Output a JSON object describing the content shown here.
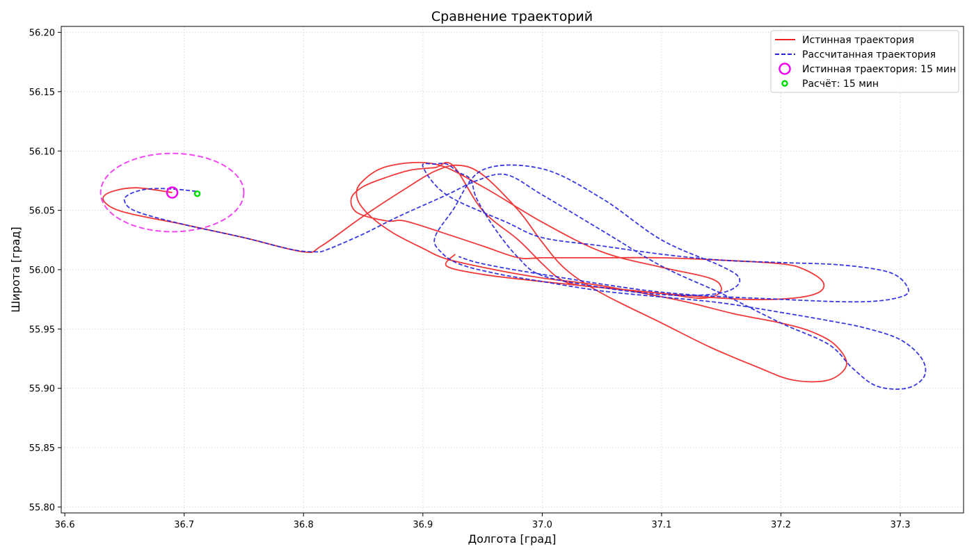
{
  "chart_data": {
    "type": "line",
    "title": "Сравнение траекторий",
    "xlabel": "Долгота [град]",
    "ylabel": "Широта [град]",
    "xlim": [
      36.597,
      37.353
    ],
    "ylim": [
      55.795,
      56.205
    ],
    "xticks": [
      "36.6",
      "36.7",
      "36.8",
      "36.9",
      "37.0",
      "37.1",
      "37.2",
      "37.3"
    ],
    "xtick_values": [
      36.6,
      36.7,
      36.8,
      36.9,
      37.0,
      37.1,
      37.2,
      37.3
    ],
    "yticks": [
      "55.80",
      "55.85",
      "55.90",
      "55.95",
      "56.00",
      "56.05",
      "56.10",
      "56.15",
      "56.20"
    ],
    "ytick_values": [
      55.8,
      55.85,
      55.9,
      55.95,
      56.0,
      56.05,
      56.1,
      56.15,
      56.2
    ],
    "grid": true,
    "legend_position": "top-right",
    "series": [
      {
        "name": "Истинная траектория",
        "style": "solid",
        "color": "#ee2222",
        "x": [
          36.69,
          36.66,
          36.64,
          36.632,
          36.64,
          36.66,
          36.7,
          36.75,
          36.8,
          36.815,
          36.85,
          36.885,
          36.91,
          36.93,
          36.95,
          36.98,
          37.0,
          37.02,
          37.05,
          37.1,
          37.14,
          37.18,
          37.21,
          37.24,
          37.255,
          37.245,
          37.225,
          37.2,
          37.16,
          37.12,
          37.08,
          37.04,
          37.0,
          36.96,
          36.92,
          36.9,
          36.875,
          36.855,
          36.845,
          36.848,
          36.87,
          36.91,
          36.95,
          37.0,
          37.05,
          37.1,
          37.14,
          37.15,
          37.145,
          37.13,
          37.1,
          37.06,
          37.03,
          37.015,
          37.0,
          36.98,
          36.95,
          36.925,
          36.91,
          36.89,
          36.87,
          36.85,
          36.84,
          36.845,
          36.87,
          36.885,
          36.92,
          36.95,
          36.98,
          37.0,
          37.05,
          37.1,
          37.15,
          37.2,
          37.22,
          37.235,
          37.232,
          37.21,
          37.17,
          37.1,
          37.0,
          36.95,
          36.92,
          36.927
        ],
        "y": [
          56.065,
          56.069,
          56.066,
          56.06,
          56.052,
          56.046,
          56.038,
          56.027,
          56.015,
          56.02,
          56.045,
          56.068,
          56.083,
          56.088,
          56.08,
          56.05,
          56.023,
          56.0,
          55.98,
          55.955,
          55.935,
          55.918,
          55.907,
          55.907,
          55.92,
          55.937,
          55.948,
          55.955,
          55.963,
          55.973,
          55.981,
          55.988,
          55.993,
          56.0,
          56.009,
          56.018,
          56.031,
          56.046,
          56.06,
          56.073,
          56.087,
          56.089,
          56.07,
          56.04,
          56.015,
          56.002,
          55.993,
          55.985,
          55.978,
          55.976,
          55.98,
          55.984,
          55.987,
          55.992,
          56.005,
          56.025,
          56.05,
          56.088,
          56.086,
          56.084,
          56.078,
          56.07,
          56.06,
          56.048,
          56.041,
          56.041,
          56.03,
          56.02,
          56.01,
          56.01,
          56.01,
          56.01,
          56.008,
          56.005,
          56.0,
          55.99,
          55.981,
          55.976,
          55.975,
          55.98,
          55.99,
          55.996,
          56.003,
          56.013
        ]
      },
      {
        "name": "Рассчитанная траектория",
        "style": "dashed",
        "color": "#2222dd",
        "x": [
          36.71,
          36.69,
          36.67,
          36.655,
          36.65,
          36.66,
          36.7,
          36.75,
          36.79,
          36.81,
          36.82,
          36.85,
          36.88,
          36.92,
          36.945,
          36.97,
          37.0,
          37.05,
          37.1,
          37.15,
          37.2,
          37.24,
          37.26,
          37.28,
          37.305,
          37.32,
          37.318,
          37.3,
          37.27,
          37.24,
          37.2,
          37.15,
          37.1,
          37.05,
          37.0,
          36.96,
          36.93,
          36.915,
          36.91,
          36.925,
          36.95,
          37.0,
          37.05,
          37.1,
          37.15,
          37.165,
          37.16,
          37.14,
          37.1,
          37.05,
          37.0,
          36.98,
          36.96,
          36.945,
          36.94,
          36.93,
          36.92,
          36.91,
          36.9,
          36.92,
          36.97,
          37.0,
          37.05,
          37.1,
          37.15,
          37.2,
          37.25,
          37.29,
          37.305,
          37.303,
          37.27,
          37.2,
          37.1,
          37.0,
          36.95,
          36.93
        ],
        "y": [
          56.066,
          56.068,
          56.068,
          56.064,
          56.058,
          56.049,
          56.038,
          56.027,
          56.017,
          56.015,
          56.017,
          56.03,
          56.045,
          56.063,
          56.075,
          56.08,
          56.063,
          56.033,
          56.003,
          55.98,
          55.955,
          55.937,
          55.917,
          55.902,
          55.9,
          55.91,
          55.925,
          55.941,
          55.951,
          55.957,
          55.964,
          55.972,
          55.977,
          55.982,
          55.99,
          55.997,
          56.005,
          56.015,
          56.027,
          56.05,
          56.084,
          56.085,
          56.06,
          56.025,
          56.003,
          55.993,
          55.984,
          55.979,
          55.979,
          55.985,
          55.995,
          56.01,
          56.035,
          56.06,
          56.076,
          56.082,
          56.089,
          56.089,
          56.087,
          56.063,
          56.04,
          56.027,
          56.02,
          56.013,
          56.008,
          56.006,
          56.004,
          55.998,
          55.987,
          55.978,
          55.973,
          55.975,
          55.981,
          55.996,
          56.005,
          56.011
        ]
      }
    ],
    "markers": [
      {
        "name": "Истинная траектория: 15 мин",
        "color": "#ee00ee",
        "x": 36.69,
        "y": 56.065
      },
      {
        "name": "Расчёт: 15 мин",
        "color": "#00dd00",
        "x": 36.711,
        "y": 56.064
      }
    ],
    "uncertainty_ellipse": {
      "color": "#ee33ee",
      "cx": 36.69,
      "cy": 56.065,
      "rx": 0.06,
      "ry": 0.033
    }
  }
}
